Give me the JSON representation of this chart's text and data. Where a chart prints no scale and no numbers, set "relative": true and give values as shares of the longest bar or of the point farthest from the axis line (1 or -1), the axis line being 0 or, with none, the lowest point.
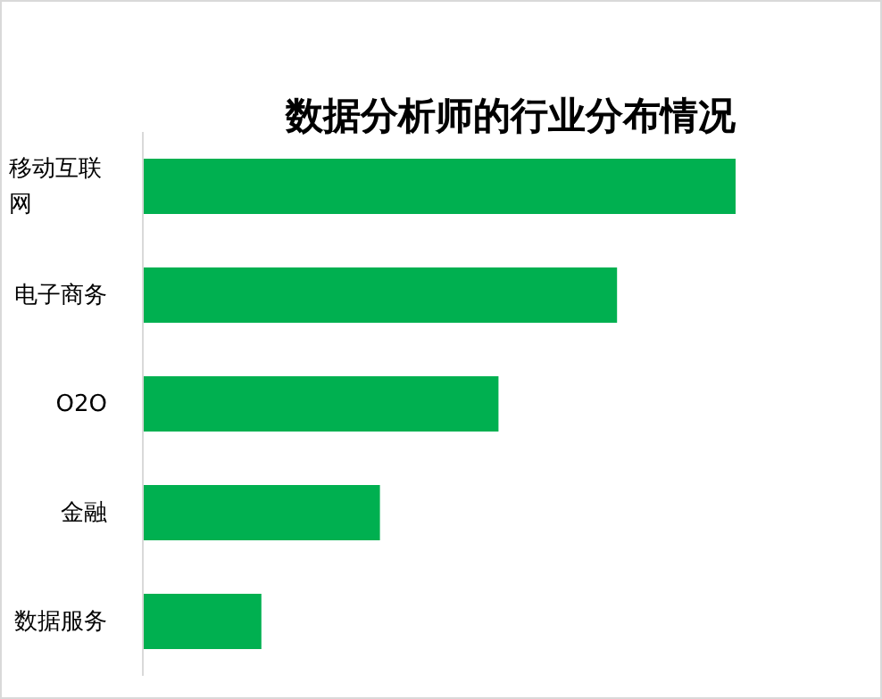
{
  "chart_data": {
    "type": "bar",
    "title": "数据分析师的行业分布情况",
    "orientation": "horizontal",
    "relative": true,
    "categories": [
      "移动互联网",
      "电子商务",
      "O2O",
      "金融",
      "数据服务"
    ],
    "values": [
      1,
      0.8,
      0.6,
      0.4,
      0.2
    ],
    "color": "#00b050"
  }
}
